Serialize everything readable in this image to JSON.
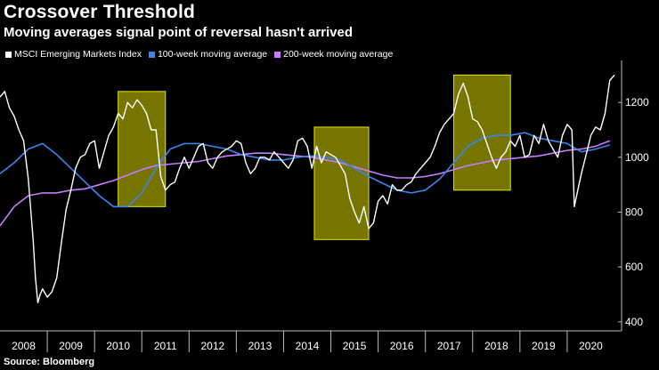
{
  "title": "Crossover Threshold",
  "subtitle": "Moving averages signal point of reversal hasn't arrived",
  "source": "Source: Bloomberg",
  "colors": {
    "background": "#000000",
    "msci": "#ffffff",
    "ma100": "#3a86f0",
    "ma200": "#c77dff",
    "highlight_fill": "#8a8a00",
    "highlight_stroke": "#e6e600"
  },
  "chart_data": {
    "type": "line",
    "title": "Crossover Threshold",
    "subtitle": "Moving averages signal point of reversal hasn't arrived",
    "xlabel": "",
    "ylabel": "",
    "xlim": [
      2008.0,
      2021.0
    ],
    "ylim": [
      380,
      1340
    ],
    "yticks": [
      400,
      600,
      800,
      1000,
      1200
    ],
    "xtick_labels": [
      "2008",
      "2009",
      "2010",
      "2011",
      "2012",
      "2013",
      "2014",
      "2015",
      "2016",
      "2017",
      "2018",
      "2019",
      "2020"
    ],
    "legend": [
      "MSCI Emerging Markets Index",
      "100-week moving average",
      "200-week moving average"
    ],
    "highlights": [
      {
        "x0": 2010.5,
        "x1": 2011.5,
        "y0": 820,
        "y1": 1240
      },
      {
        "x0": 2014.65,
        "x1": 2015.8,
        "y0": 700,
        "y1": 1110
      },
      {
        "x0": 2017.6,
        "x1": 2018.8,
        "y0": 880,
        "y1": 1300
      }
    ],
    "series": [
      {
        "name": "MSCI Emerging Markets Index",
        "x": [
          2008.0,
          2008.1,
          2008.2,
          2008.3,
          2008.4,
          2008.5,
          2008.6,
          2008.7,
          2008.75,
          2008.8,
          2008.85,
          2008.9,
          2009.0,
          2009.1,
          2009.2,
          2009.3,
          2009.4,
          2009.5,
          2009.6,
          2009.7,
          2009.8,
          2009.9,
          2010.0,
          2010.1,
          2010.2,
          2010.3,
          2010.4,
          2010.5,
          2010.6,
          2010.7,
          2010.8,
          2010.9,
          2011.0,
          2011.1,
          2011.2,
          2011.3,
          2011.4,
          2011.5,
          2011.6,
          2011.7,
          2011.8,
          2011.9,
          2012.0,
          2012.1,
          2012.2,
          2012.3,
          2012.4,
          2012.5,
          2012.6,
          2012.7,
          2012.8,
          2012.9,
          2013.0,
          2013.1,
          2013.2,
          2013.3,
          2013.4,
          2013.5,
          2013.6,
          2013.7,
          2013.8,
          2013.9,
          2014.0,
          2014.1,
          2014.2,
          2014.3,
          2014.4,
          2014.5,
          2014.6,
          2014.7,
          2014.8,
          2014.9,
          2015.0,
          2015.1,
          2015.2,
          2015.3,
          2015.4,
          2015.5,
          2015.6,
          2015.7,
          2015.8,
          2015.9,
          2016.0,
          2016.1,
          2016.2,
          2016.3,
          2016.4,
          2016.5,
          2016.6,
          2016.7,
          2016.8,
          2016.9,
          2017.0,
          2017.1,
          2017.2,
          2017.3,
          2017.4,
          2017.5,
          2017.6,
          2017.7,
          2017.8,
          2017.9,
          2018.0,
          2018.1,
          2018.2,
          2018.3,
          2018.4,
          2018.5,
          2018.6,
          2018.7,
          2018.8,
          2018.9,
          2019.0,
          2019.1,
          2019.2,
          2019.3,
          2019.4,
          2019.5,
          2019.6,
          2019.7,
          2019.8,
          2019.9,
          2020.0,
          2020.1,
          2020.15,
          2020.2,
          2020.3,
          2020.4,
          2020.5,
          2020.6,
          2020.7,
          2020.8,
          2020.9,
          2021.0
        ],
        "values": [
          1220,
          1240,
          1180,
          1150,
          1100,
          1060,
          920,
          700,
          560,
          470,
          500,
          520,
          490,
          510,
          560,
          690,
          810,
          880,
          960,
          1000,
          1010,
          1050,
          1060,
          960,
          1020,
          1080,
          1110,
          1160,
          1140,
          1200,
          1180,
          1210,
          1190,
          1160,
          1100,
          1100,
          930,
          880,
          900,
          910,
          960,
          1000,
          960,
          1000,
          1040,
          1050,
          980,
          960,
          1000,
          1020,
          1030,
          1040,
          1060,
          1050,
          980,
          940,
          960,
          1000,
          1000,
          990,
          1020,
          1000,
          980,
          960,
          990,
          1060,
          1070,
          1040,
          960,
          1040,
          980,
          1020,
          1010,
          1000,
          970,
          940,
          850,
          800,
          760,
          820,
          740,
          760,
          840,
          860,
          830,
          900,
          880,
          880,
          900,
          910,
          940,
          960,
          980,
          1000,
          1040,
          1090,
          1120,
          1140,
          1160,
          1230,
          1270,
          1220,
          1140,
          1130,
          1100,
          1050,
          1000,
          960,
          1000,
          1020,
          1060,
          1040,
          1080,
          1000,
          1010,
          1080,
          1050,
          1120,
          1060,
          1030,
          1000,
          1080,
          1120,
          1100,
          820,
          860,
          940,
          1010,
          1080,
          1110,
          1100,
          1160,
          1280,
          1300
        ]
      },
      {
        "name": "100-week moving average",
        "x": [
          2008.0,
          2008.3,
          2008.6,
          2008.9,
          2009.2,
          2009.5,
          2009.8,
          2010.1,
          2010.4,
          2010.7,
          2011.0,
          2011.3,
          2011.6,
          2011.9,
          2012.2,
          2012.5,
          2012.8,
          2013.1,
          2013.4,
          2013.7,
          2014.0,
          2014.3,
          2014.6,
          2014.9,
          2015.2,
          2015.5,
          2015.8,
          2016.1,
          2016.4,
          2016.7,
          2017.0,
          2017.3,
          2017.6,
          2017.9,
          2018.2,
          2018.5,
          2018.8,
          2019.1,
          2019.4,
          2019.7,
          2020.0,
          2020.3,
          2020.6,
          2020.9
        ],
        "values": [
          940,
          980,
          1030,
          1050,
          1010,
          960,
          910,
          860,
          820,
          820,
          870,
          960,
          1030,
          1050,
          1050,
          1040,
          1030,
          1010,
          1000,
          990,
          990,
          1000,
          1005,
          1000,
          990,
          960,
          930,
          905,
          880,
          870,
          880,
          920,
          980,
          1040,
          1070,
          1080,
          1080,
          1090,
          1070,
          1060,
          1050,
          1020,
          1030,
          1045
        ]
      },
      {
        "name": "200-week moving average",
        "x": [
          2008.0,
          2008.3,
          2008.6,
          2008.9,
          2009.2,
          2009.5,
          2009.8,
          2010.1,
          2010.4,
          2010.7,
          2011.0,
          2011.3,
          2011.6,
          2011.9,
          2012.2,
          2012.5,
          2012.8,
          2013.1,
          2013.4,
          2013.7,
          2014.0,
          2014.3,
          2014.6,
          2014.9,
          2015.2,
          2015.5,
          2015.8,
          2016.1,
          2016.4,
          2016.7,
          2017.0,
          2017.3,
          2017.6,
          2017.9,
          2018.2,
          2018.5,
          2018.8,
          2019.1,
          2019.4,
          2019.7,
          2020.0,
          2020.3,
          2020.6,
          2020.9
        ],
        "values": [
          750,
          820,
          860,
          870,
          870,
          880,
          885,
          900,
          915,
          935,
          955,
          970,
          975,
          980,
          985,
          995,
          1005,
          1010,
          1015,
          1015,
          1010,
          1005,
          1000,
          990,
          980,
          965,
          950,
          935,
          925,
          925,
          930,
          940,
          955,
          970,
          980,
          990,
          995,
          1000,
          1005,
          1015,
          1025,
          1030,
          1040,
          1060
        ]
      }
    ]
  }
}
